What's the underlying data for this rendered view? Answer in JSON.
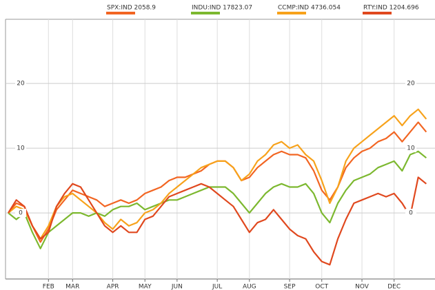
{
  "chart_data": {
    "type": "line",
    "categories": [
      null,
      null,
      null,
      null,
      null,
      "FEB",
      null,
      null,
      "MAR",
      null,
      null,
      null,
      null,
      "APR",
      null,
      null,
      null,
      "MAY",
      null,
      null,
      null,
      "JUN",
      null,
      null,
      null,
      null,
      "JUL",
      null,
      null,
      null,
      "AUG",
      null,
      null,
      null,
      null,
      "SEP",
      null,
      null,
      null,
      "OCT",
      null,
      null,
      null,
      null,
      "NOV",
      null,
      null,
      null,
      "DEC",
      null,
      null,
      null,
      null
    ],
    "series": [
      {
        "name": "SPX:IND 2058.9",
        "color": "#f26522",
        "values": [
          0,
          1.5,
          1,
          -2,
          -4.5,
          -2.5,
          0.5,
          2,
          3.5,
          3,
          2.5,
          2,
          1,
          1.5,
          2,
          1.5,
          2,
          3,
          3.5,
          4,
          5,
          5.5,
          5.5,
          6,
          6.5,
          7.5,
          8,
          8,
          7,
          5,
          5.5,
          7,
          8,
          9,
          9.5,
          9,
          9,
          8.5,
          6.5,
          3.5,
          2,
          4,
          7,
          8.5,
          9.5,
          10,
          11,
          11.5,
          12.5,
          11,
          12.5,
          14,
          12.5
        ]
      },
      {
        "name": "INDU:IND 17823.07",
        "color": "#7cb82f",
        "values": [
          0,
          -1,
          0,
          -3,
          -5.5,
          -3,
          -2,
          -1,
          0,
          0,
          -0.5,
          0,
          -0.5,
          0.5,
          1,
          1,
          1.5,
          0.5,
          1,
          1.5,
          2,
          2,
          2.5,
          3,
          3.5,
          4,
          4,
          4,
          3,
          1.5,
          0,
          1.5,
          3,
          4,
          4.5,
          4,
          4,
          4.5,
          3,
          0,
          -1.5,
          1.5,
          3.5,
          5,
          5.5,
          6,
          7,
          7.5,
          8,
          6.5,
          9,
          9.5,
          8.5
        ]
      },
      {
        "name": "CCMP:IND 4736.054",
        "color": "#f7a21b",
        "values": [
          0,
          1,
          0.5,
          -2,
          -4,
          -2,
          1,
          2.5,
          3,
          2,
          1,
          0,
          -1.5,
          -2.5,
          -1,
          -2,
          -1.5,
          0,
          0.5,
          1.5,
          3,
          4,
          5,
          6,
          7,
          7.5,
          8,
          8,
          7,
          5,
          6,
          8,
          9,
          10.5,
          11,
          10,
          10.5,
          9,
          8,
          5,
          1.5,
          4,
          8,
          10,
          11,
          12,
          13,
          14,
          15,
          13.5,
          15,
          16,
          14.5
        ]
      },
      {
        "name": "RTY:IND 1204.696",
        "color": "#e0481e",
        "values": [
          0,
          2,
          1,
          -2,
          -4,
          -3,
          1,
          3,
          4.5,
          4,
          2,
          0,
          -2,
          -3,
          -2,
          -3,
          -3,
          -1,
          -0.5,
          1,
          2.5,
          3,
          3.5,
          4,
          4.5,
          4,
          3,
          2,
          1,
          -1,
          -3,
          -1.5,
          -1,
          0.5,
          -1,
          -2.5,
          -3.5,
          -4,
          -6,
          -7.5,
          -8,
          -4,
          -1,
          1.5,
          2,
          2.5,
          3,
          2.5,
          3,
          1.5,
          -0.5,
          5.5,
          4.5
        ]
      }
    ],
    "ylim": [
      -10.2,
      29.9
    ],
    "yticks": [
      0,
      10,
      20
    ],
    "grid": true
  }
}
